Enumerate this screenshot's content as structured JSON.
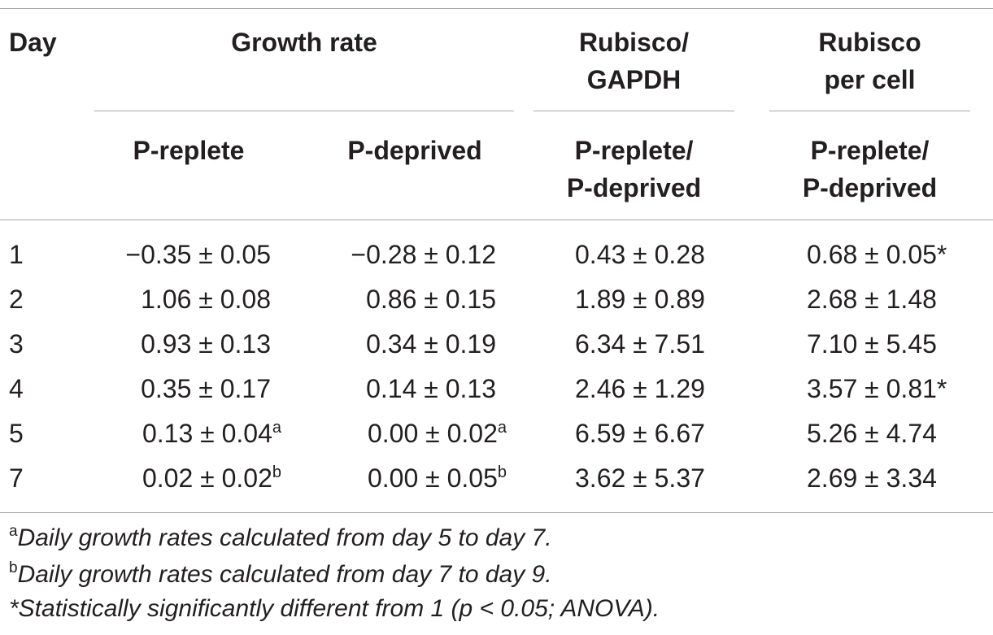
{
  "table": {
    "headers": {
      "day": "Day",
      "growth_rate": "Growth rate",
      "rubisco_gapdh": [
        "Rubisco/",
        "GAPDH"
      ],
      "rubisco_per_cell": [
        "Rubisco",
        "per cell"
      ]
    },
    "subheaders": {
      "growth_replete": "P-replete",
      "growth_deprived": "P-deprived",
      "gapdh_ratio": [
        "P-replete/",
        "P-deprived"
      ],
      "cell_ratio": [
        "P-replete/",
        "P-deprived"
      ]
    },
    "rows": [
      {
        "day": "1",
        "replete": "−0.35 ± 0.05",
        "replete_sup": "",
        "deprived": "−0.28 ± 0.12",
        "deprived_sup": "",
        "gapdh": "0.43 ± 0.28",
        "cell": "0.68 ± 0.05*"
      },
      {
        "day": "2",
        "replete": "1.06 ± 0.08",
        "replete_sup": "",
        "deprived": "0.86 ± 0.15",
        "deprived_sup": "",
        "gapdh": "1.89 ± 0.89",
        "cell": "2.68 ± 1.48"
      },
      {
        "day": "3",
        "replete": "0.93 ± 0.13",
        "replete_sup": "",
        "deprived": "0.34 ± 0.19",
        "deprived_sup": "",
        "gapdh": "6.34 ± 7.51",
        "cell": "7.10 ± 5.45"
      },
      {
        "day": "4",
        "replete": "0.35 ± 0.17",
        "replete_sup": "",
        "deprived": "0.14 ± 0.13",
        "deprived_sup": "",
        "gapdh": "2.46 ± 1.29",
        "cell": "3.57 ± 0.81*"
      },
      {
        "day": "5",
        "replete": "0.13 ± 0.04",
        "replete_sup": "a",
        "deprived": "0.00 ± 0.02",
        "deprived_sup": "a",
        "gapdh": "6.59 ± 6.67",
        "cell": "5.26 ± 4.74"
      },
      {
        "day": "7",
        "replete": "0.02 ± 0.02",
        "replete_sup": "b",
        "deprived": "0.00 ± 0.05",
        "deprived_sup": "b",
        "gapdh": "3.62 ± 5.37",
        "cell": "2.69 ± 3.34"
      }
    ]
  },
  "footnotes": [
    {
      "mark": "a",
      "text": "Daily growth rates calculated from day 5 to day 7."
    },
    {
      "mark": "b",
      "text": "Daily growth rates calculated from day 7 to day 9."
    },
    {
      "mark": "",
      "text": "*Statistically significantly different from 1 (p < 0.05; ANOVA)."
    }
  ]
}
